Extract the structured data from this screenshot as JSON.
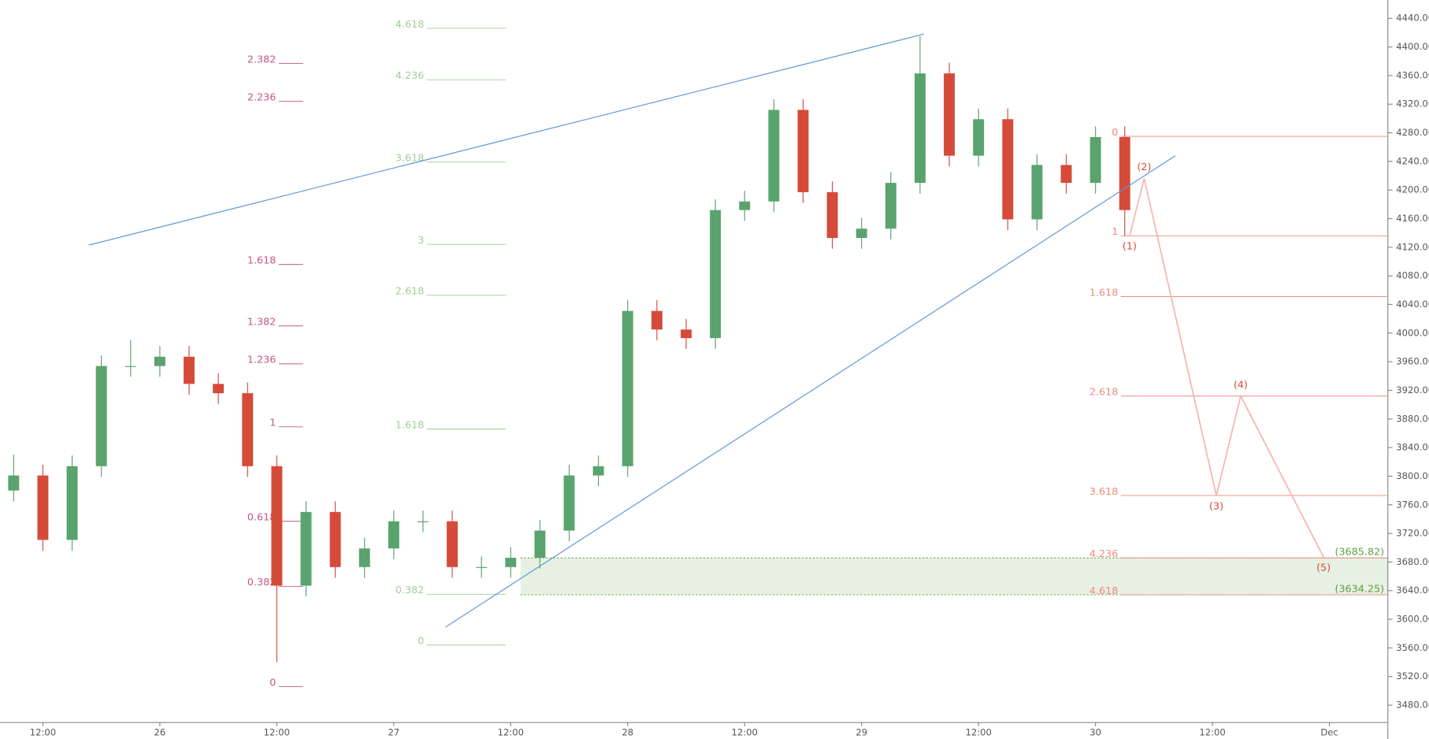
{
  "chart_data": {
    "type": "candlestick",
    "x": [
      9,
      12,
      15,
      18,
      21,
      24,
      27,
      30,
      33,
      36,
      39,
      42,
      45,
      48,
      51,
      54,
      57,
      60,
      63,
      66,
      69,
      72,
      75,
      78,
      81,
      84,
      87,
      90,
      93,
      96,
      99,
      102,
      105,
      108,
      111,
      114,
      117,
      120,
      123
    ],
    "open": [
      3780,
      3801,
      3711,
      3814,
      3954,
      3954,
      3967,
      3929,
      3916,
      3814,
      3647,
      3750,
      3673,
      3699,
      3737,
      3737,
      3673,
      3673,
      3686,
      3724,
      3801,
      3814,
      4031,
      4005,
      3993,
      4172,
      4184,
      4312,
      4197,
      4133,
      4146,
      4210,
      4363,
      4248,
      4299,
      4159,
      4235,
      4210,
      4274
    ],
    "high": [
      3830,
      3816,
      3829,
      3969,
      3990,
      3982,
      3982,
      3944,
      3931,
      3829,
      3765,
      3765,
      3714,
      3752,
      3752,
      3752,
      3688,
      3701,
      3739,
      3816,
      3829,
      4046,
      4046,
      4020,
      4187,
      4199,
      4327,
      4327,
      4212,
      4161,
      4225,
      4415,
      4378,
      4314,
      4314,
      4250,
      4250,
      4289,
      4289
    ],
    "low": [
      3765,
      3696,
      3696,
      3799,
      3939,
      3939,
      3914,
      3901,
      3799,
      3540,
      3632,
      3658,
      3658,
      3684,
      3722,
      3658,
      3658,
      3658,
      3671,
      3709,
      3786,
      3799,
      3990,
      3978,
      3978,
      4157,
      4169,
      4182,
      4118,
      4118,
      4131,
      4195,
      4233,
      4233,
      4144,
      4144,
      4195,
      4195,
      4136
    ],
    "close": [
      3801,
      3711,
      3814,
      3954,
      3954,
      3967,
      3929,
      3916,
      3814,
      3647,
      3750,
      3673,
      3699,
      3737,
      3737,
      3673,
      3673,
      3686,
      3724,
      3801,
      3814,
      4031,
      4005,
      3993,
      4172,
      4184,
      4312,
      4197,
      4133,
      4146,
      4210,
      4363,
      4248,
      4299,
      4159,
      4235,
      4210,
      4274,
      4172
    ],
    "up_color": "#5aa36e",
    "down_color": "#d64a3a",
    "xlim": [
      7.6,
      150
    ],
    "ylim": [
      3455.7,
      4465.6
    ],
    "xticks": [
      {
        "value": 12,
        "label": "12:00"
      },
      {
        "value": 24,
        "label": "26"
      },
      {
        "value": 36,
        "label": "12:00"
      },
      {
        "value": 48,
        "label": "27"
      },
      {
        "value": 60,
        "label": "12:00"
      },
      {
        "value": 72,
        "label": "28"
      },
      {
        "value": 84,
        "label": "12:00"
      },
      {
        "value": 96,
        "label": "29"
      },
      {
        "value": 108,
        "label": "12:00"
      },
      {
        "value": 120,
        "label": "30"
      },
      {
        "value": 132,
        "label": "12:00"
      },
      {
        "value": 144,
        "label": "Dec"
      }
    ],
    "yticks": [
      {
        "value": 3480,
        "label": "3480.00"
      },
      {
        "value": 3520,
        "label": "3520.00"
      },
      {
        "value": 3560,
        "label": "3560.00"
      },
      {
        "value": 3600,
        "label": "3600.00"
      },
      {
        "value": 3640,
        "label": "3640.00"
      },
      {
        "value": 3680,
        "label": "3680.00"
      },
      {
        "value": 3720,
        "label": "3720.00"
      },
      {
        "value": 3760,
        "label": "3760.00"
      },
      {
        "value": 3800,
        "label": "3800.00"
      },
      {
        "value": 3840,
        "label": "3840.00"
      },
      {
        "value": 3880,
        "label": "3880.00"
      },
      {
        "value": 3920,
        "label": "3920.00"
      },
      {
        "value": 3960,
        "label": "3960.00"
      },
      {
        "value": 4000,
        "label": "4000.00"
      },
      {
        "value": 4040,
        "label": "4040.00"
      },
      {
        "value": 4080,
        "label": "4080.00"
      },
      {
        "value": 4120,
        "label": "4120.00"
      },
      {
        "value": 4160,
        "label": "4160.00"
      },
      {
        "value": 4200,
        "label": "4200.00"
      },
      {
        "value": 4240,
        "label": "4240.00"
      },
      {
        "value": 4280,
        "label": "4280.00"
      },
      {
        "value": 4320,
        "label": "4320.00"
      },
      {
        "value": 4360,
        "label": "4360.00"
      },
      {
        "value": 4400,
        "label": "4400.00"
      },
      {
        "value": 4440,
        "label": "4440.00"
      }
    ],
    "fib_sets": [
      {
        "color": "#c2578a",
        "levels": [
          {
            "label": "2.382",
            "value": 4377
          },
          {
            "label": "2.236",
            "value": 4324
          },
          {
            "label": "1.618",
            "value": 4096
          },
          {
            "label": "1.382",
            "value": 4010
          },
          {
            "label": "1.236",
            "value": 3957
          },
          {
            "label": "1",
            "value": 3869
          },
          {
            "label": "0.618",
            "value": 3737
          },
          {
            "label": "0.382",
            "value": 3646
          },
          {
            "label": "0",
            "value": 3506
          }
        ]
      },
      {
        "color": "#9fce95",
        "levels": [
          {
            "label": "4.618",
            "value": 4426
          },
          {
            "label": "4.236",
            "value": 4354
          },
          {
            "label": "3.618",
            "value": 4239
          },
          {
            "label": "3",
            "value": 4124
          },
          {
            "label": "2.618",
            "value": 4053
          },
          {
            "label": "1.618",
            "value": 3866
          },
          {
            "label": "0.382",
            "value": 3635
          },
          {
            "label": "0",
            "value": 3564
          }
        ]
      },
      {
        "color": "#ef8a80",
        "levels": [
          {
            "label": "0",
            "value": 4275
          },
          {
            "label": "1",
            "value": 4136
          },
          {
            "label": "1.618",
            "value": 4051
          },
          {
            "label": "2.618",
            "value": 3912
          },
          {
            "label": "3.618",
            "value": 3773
          },
          {
            "label": "4.236",
            "value": 3685.82
          },
          {
            "label": "4.618",
            "value": 3634.25
          }
        ]
      }
    ],
    "zone": {
      "values": [
        3685.82,
        3634.25
      ],
      "value_labels": [
        "(3685.82)",
        "(3634.25)"
      ],
      "color": "#5e9e45"
    },
    "trendlines": [
      {
        "x": [
          16.7,
          102.4
        ],
        "values": [
          4123,
          4418
        ],
        "color": "#5b95d8"
      },
      {
        "x": [
          53.3,
          128.2
        ],
        "values": [
          3589,
          4248
        ],
        "color": "#5b95d8"
      }
    ],
    "waves": {
      "labels": [
        "(1)",
        "(2)",
        "(3)",
        "(4)",
        "(5)"
      ],
      "x": [
        123.5,
        125,
        132.4,
        134.9,
        143.4
      ],
      "values": [
        4136,
        4216,
        3773,
        3912,
        3687
      ],
      "color": "#f4b6b0",
      "label_color": "#d64a3a"
    }
  }
}
